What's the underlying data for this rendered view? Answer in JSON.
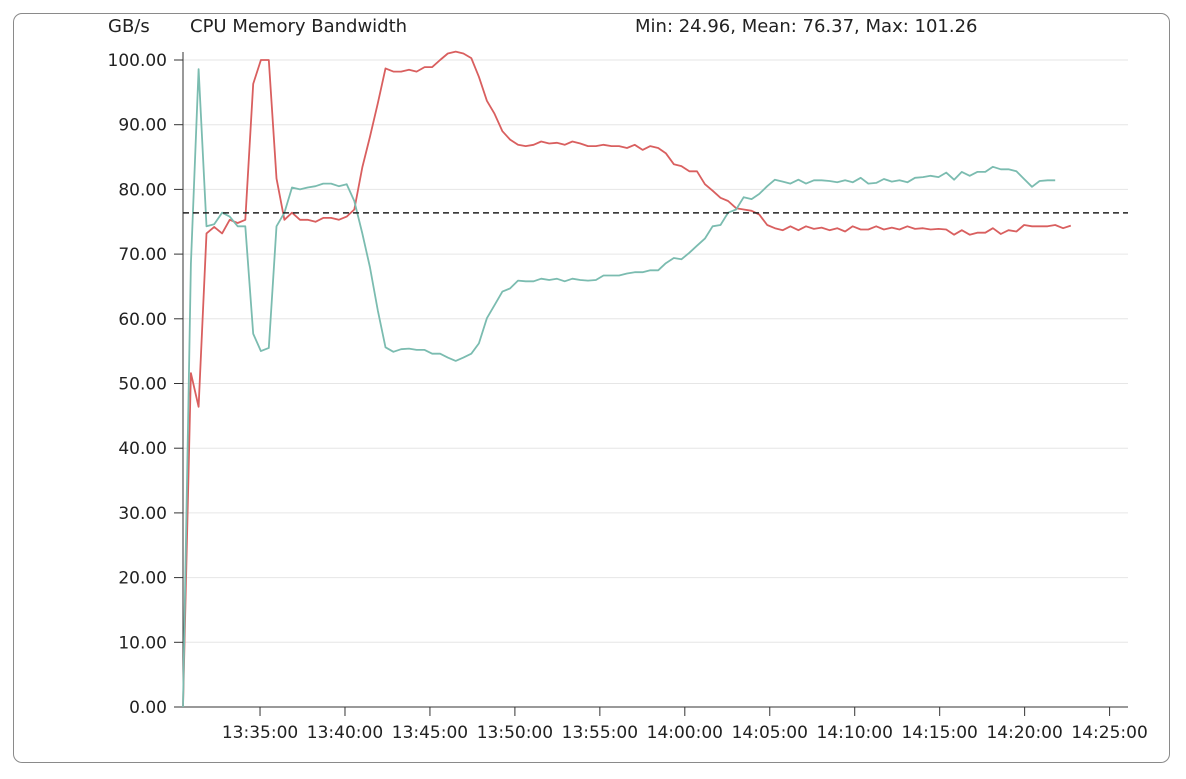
{
  "header": {
    "unit_label": "GB/s",
    "title": "CPU Memory Bandwidth",
    "stats": "Min: 24.96, Mean: 76.37, Max: 101.26"
  },
  "chart_data": {
    "type": "line",
    "title": "CPU Memory Bandwidth",
    "ylabel": "GB/s",
    "xlabel": "",
    "ylim": [
      0,
      100
    ],
    "yticks": [
      "0.00",
      "10.00",
      "20.00",
      "30.00",
      "40.00",
      "50.00",
      "60.00",
      "70.00",
      "80.00",
      "90.00",
      "100.00"
    ],
    "xticks": [
      "13:35:00",
      "13:40:00",
      "13:45:00",
      "13:50:00",
      "13:55:00",
      "14:00:00",
      "14:05:00",
      "14:10:00",
      "14:15:00",
      "14:20:00",
      "14:25:00"
    ],
    "x_range": [
      "13:30:28",
      "14:26:05"
    ],
    "mean": 76.37,
    "min": 24.96,
    "max": 101.26,
    "grid": true,
    "colors": {
      "series_1": "#d95f5f",
      "series_2": "#7bbcb0",
      "mean_line": "#222222",
      "grid": "#e6e6e6"
    },
    "series": [
      {
        "color": "#d95f5f",
        "points": [
          [
            "13:30:28",
            0.0
          ],
          [
            "13:30:56",
            51.6
          ],
          [
            "13:31:23",
            46.4
          ],
          [
            "13:31:51",
            73.2
          ],
          [
            "13:32:18",
            74.2
          ],
          [
            "13:32:46",
            73.2
          ],
          [
            "13:33:13",
            75.3
          ],
          [
            "13:33:41",
            74.8
          ],
          [
            "13:34:08",
            75.3
          ],
          [
            "13:34:36",
            96.3
          ],
          [
            "13:35:03",
            100.0
          ],
          [
            "13:35:31",
            100.0
          ],
          [
            "13:35:58",
            81.7
          ],
          [
            "13:36:26",
            75.3
          ],
          [
            "13:36:53",
            76.4
          ],
          [
            "13:37:21",
            75.3
          ],
          [
            "13:37:48",
            75.3
          ],
          [
            "13:38:16",
            75.0
          ],
          [
            "13:38:43",
            75.6
          ],
          [
            "13:39:11",
            75.6
          ],
          [
            "13:39:38",
            75.3
          ],
          [
            "13:40:06",
            75.8
          ],
          [
            "13:40:33",
            76.9
          ],
          [
            "13:41:01",
            83.4
          ],
          [
            "13:41:28",
            88.1
          ],
          [
            "13:41:56",
            93.3
          ],
          [
            "13:42:23",
            98.7
          ],
          [
            "13:42:51",
            98.2
          ],
          [
            "13:43:18",
            98.2
          ],
          [
            "13:43:46",
            98.5
          ],
          [
            "13:44:13",
            98.2
          ],
          [
            "13:44:41",
            98.9
          ],
          [
            "13:45:08",
            98.9
          ],
          [
            "13:45:36",
            100.0
          ],
          [
            "13:46:03",
            101.0
          ],
          [
            "13:46:31",
            101.3
          ],
          [
            "13:46:58",
            101.0
          ],
          [
            "13:47:26",
            100.3
          ],
          [
            "13:47:53",
            97.4
          ],
          [
            "13:48:21",
            93.7
          ],
          [
            "13:48:48",
            91.7
          ],
          [
            "13:49:16",
            89.0
          ],
          [
            "13:49:43",
            87.7
          ],
          [
            "13:50:11",
            86.9
          ],
          [
            "13:50:38",
            86.7
          ],
          [
            "13:51:06",
            86.9
          ],
          [
            "13:51:33",
            87.4
          ],
          [
            "13:52:01",
            87.1
          ],
          [
            "13:52:28",
            87.2
          ],
          [
            "13:52:56",
            86.9
          ],
          [
            "13:53:23",
            87.4
          ],
          [
            "13:53:51",
            87.1
          ],
          [
            "13:54:18",
            86.7
          ],
          [
            "13:54:46",
            86.7
          ],
          [
            "13:55:13",
            86.9
          ],
          [
            "13:55:41",
            86.7
          ],
          [
            "13:56:08",
            86.7
          ],
          [
            "13:56:36",
            86.4
          ],
          [
            "13:57:03",
            86.9
          ],
          [
            "13:57:31",
            86.1
          ],
          [
            "13:57:58",
            86.7
          ],
          [
            "13:58:26",
            86.4
          ],
          [
            "13:58:53",
            85.6
          ],
          [
            "13:59:21",
            83.9
          ],
          [
            "13:59:48",
            83.6
          ],
          [
            "14:00:16",
            82.8
          ],
          [
            "14:00:43",
            82.8
          ],
          [
            "14:01:11",
            80.8
          ],
          [
            "14:01:38",
            79.8
          ],
          [
            "14:02:06",
            78.7
          ],
          [
            "14:02:33",
            78.2
          ],
          [
            "14:03:01",
            77.1
          ],
          [
            "14:03:28",
            76.9
          ],
          [
            "14:03:56",
            76.7
          ],
          [
            "14:04:23",
            76.1
          ],
          [
            "14:04:51",
            74.5
          ],
          [
            "14:05:18",
            74.0
          ],
          [
            "14:05:46",
            73.7
          ],
          [
            "14:06:13",
            74.3
          ],
          [
            "14:06:41",
            73.7
          ],
          [
            "14:07:08",
            74.3
          ],
          [
            "14:07:36",
            73.9
          ],
          [
            "14:08:03",
            74.1
          ],
          [
            "14:08:31",
            73.7
          ],
          [
            "14:08:58",
            74.0
          ],
          [
            "14:09:26",
            73.5
          ],
          [
            "14:09:53",
            74.3
          ],
          [
            "14:10:21",
            73.8
          ],
          [
            "14:10:48",
            73.8
          ],
          [
            "14:11:16",
            74.3
          ],
          [
            "14:11:43",
            73.8
          ],
          [
            "14:12:11",
            74.1
          ],
          [
            "14:12:38",
            73.8
          ],
          [
            "14:13:06",
            74.3
          ],
          [
            "14:13:33",
            73.9
          ],
          [
            "14:14:01",
            74.0
          ],
          [
            "14:14:28",
            73.8
          ],
          [
            "14:14:56",
            73.9
          ],
          [
            "14:15:23",
            73.8
          ],
          [
            "14:15:51",
            73.0
          ],
          [
            "14:16:18",
            73.7
          ],
          [
            "14:16:46",
            73.0
          ],
          [
            "14:17:13",
            73.3
          ],
          [
            "14:17:41",
            73.3
          ],
          [
            "14:18:08",
            74.0
          ],
          [
            "14:18:36",
            73.1
          ],
          [
            "14:19:03",
            73.7
          ],
          [
            "14:19:31",
            73.5
          ],
          [
            "14:19:58",
            74.5
          ],
          [
            "14:20:26",
            74.3
          ],
          [
            "14:20:53",
            74.3
          ],
          [
            "14:21:21",
            74.3
          ],
          [
            "14:21:48",
            74.5
          ],
          [
            "14:22:16",
            74.0
          ],
          [
            "14:22:43",
            74.4
          ]
        ]
      },
      {
        "color": "#7bbcb0",
        "points": [
          [
            "13:30:28",
            0.0
          ],
          [
            "13:30:56",
            68.5
          ],
          [
            "13:31:23",
            98.6
          ],
          [
            "13:31:51",
            74.3
          ],
          [
            "13:32:18",
            74.6
          ],
          [
            "13:32:46",
            76.4
          ],
          [
            "13:33:13",
            75.8
          ],
          [
            "13:33:41",
            74.3
          ],
          [
            "13:34:08",
            74.3
          ],
          [
            "13:34:36",
            57.7
          ],
          [
            "13:35:03",
            55.0
          ],
          [
            "13:35:31",
            55.5
          ],
          [
            "13:35:58",
            74.3
          ],
          [
            "13:36:26",
            76.4
          ],
          [
            "13:36:53",
            80.3
          ],
          [
            "13:37:21",
            80.0
          ],
          [
            "13:37:48",
            80.3
          ],
          [
            "13:38:16",
            80.5
          ],
          [
            "13:38:43",
            80.9
          ],
          [
            "13:39:11",
            80.9
          ],
          [
            "13:39:38",
            80.5
          ],
          [
            "13:40:06",
            80.8
          ],
          [
            "13:40:33",
            78.2
          ],
          [
            "13:41:01",
            73.2
          ],
          [
            "13:41:28",
            68.0
          ],
          [
            "13:41:56",
            61.3
          ],
          [
            "13:42:23",
            55.6
          ],
          [
            "13:42:51",
            54.9
          ],
          [
            "13:43:18",
            55.3
          ],
          [
            "13:43:46",
            55.4
          ],
          [
            "13:44:13",
            55.2
          ],
          [
            "13:44:41",
            55.2
          ],
          [
            "13:45:08",
            54.6
          ],
          [
            "13:45:36",
            54.6
          ],
          [
            "13:46:03",
            54.0
          ],
          [
            "13:46:31",
            53.5
          ],
          [
            "13:46:58",
            54.0
          ],
          [
            "13:47:26",
            54.6
          ],
          [
            "13:47:53",
            56.2
          ],
          [
            "13:48:21",
            60.1
          ],
          [
            "13:48:48",
            62.1
          ],
          [
            "13:49:16",
            64.2
          ],
          [
            "13:49:43",
            64.7
          ],
          [
            "13:50:11",
            65.9
          ],
          [
            "13:50:38",
            65.8
          ],
          [
            "13:51:06",
            65.8
          ],
          [
            "13:51:33",
            66.2
          ],
          [
            "13:52:01",
            66.0
          ],
          [
            "13:52:28",
            66.2
          ],
          [
            "13:52:56",
            65.8
          ],
          [
            "13:53:23",
            66.2
          ],
          [
            "13:53:51",
            66.0
          ],
          [
            "13:54:18",
            65.9
          ],
          [
            "13:54:46",
            66.0
          ],
          [
            "13:55:13",
            66.7
          ],
          [
            "13:55:41",
            66.7
          ],
          [
            "13:56:08",
            66.7
          ],
          [
            "13:56:36",
            67.0
          ],
          [
            "13:57:03",
            67.2
          ],
          [
            "13:57:31",
            67.2
          ],
          [
            "13:57:58",
            67.5
          ],
          [
            "13:58:26",
            67.5
          ],
          [
            "13:58:53",
            68.6
          ],
          [
            "13:59:21",
            69.4
          ],
          [
            "13:59:48",
            69.2
          ],
          [
            "14:00:16",
            70.2
          ],
          [
            "14:00:43",
            71.3
          ],
          [
            "14:01:11",
            72.4
          ],
          [
            "14:01:38",
            74.3
          ],
          [
            "14:02:06",
            74.5
          ],
          [
            "14:02:33",
            76.4
          ],
          [
            "14:03:01",
            76.9
          ],
          [
            "14:03:28",
            78.8
          ],
          [
            "14:03:56",
            78.5
          ],
          [
            "14:04:23",
            79.3
          ],
          [
            "14:04:51",
            80.5
          ],
          [
            "14:05:18",
            81.5
          ],
          [
            "14:05:46",
            81.2
          ],
          [
            "14:06:13",
            80.9
          ],
          [
            "14:06:41",
            81.5
          ],
          [
            "14:07:08",
            80.9
          ],
          [
            "14:07:36",
            81.4
          ],
          [
            "14:08:03",
            81.4
          ],
          [
            "14:08:31",
            81.3
          ],
          [
            "14:08:58",
            81.1
          ],
          [
            "14:09:26",
            81.4
          ],
          [
            "14:09:53",
            81.1
          ],
          [
            "14:10:21",
            81.8
          ],
          [
            "14:10:48",
            80.9
          ],
          [
            "14:11:16",
            81.0
          ],
          [
            "14:11:43",
            81.6
          ],
          [
            "14:12:11",
            81.2
          ],
          [
            "14:12:38",
            81.4
          ],
          [
            "14:13:06",
            81.1
          ],
          [
            "14:13:33",
            81.8
          ],
          [
            "14:14:01",
            81.9
          ],
          [
            "14:14:28",
            82.1
          ],
          [
            "14:14:56",
            81.9
          ],
          [
            "14:15:23",
            82.6
          ],
          [
            "14:15:51",
            81.5
          ],
          [
            "14:16:18",
            82.7
          ],
          [
            "14:16:46",
            82.1
          ],
          [
            "14:17:13",
            82.7
          ],
          [
            "14:17:41",
            82.7
          ],
          [
            "14:18:08",
            83.5
          ],
          [
            "14:18:36",
            83.1
          ],
          [
            "14:19:03",
            83.1
          ],
          [
            "14:19:31",
            82.8
          ],
          [
            "14:19:58",
            81.6
          ],
          [
            "14:20:26",
            80.4
          ],
          [
            "14:20:53",
            81.3
          ],
          [
            "14:21:21",
            81.4
          ],
          [
            "14:21:48",
            81.4
          ]
        ]
      }
    ]
  }
}
